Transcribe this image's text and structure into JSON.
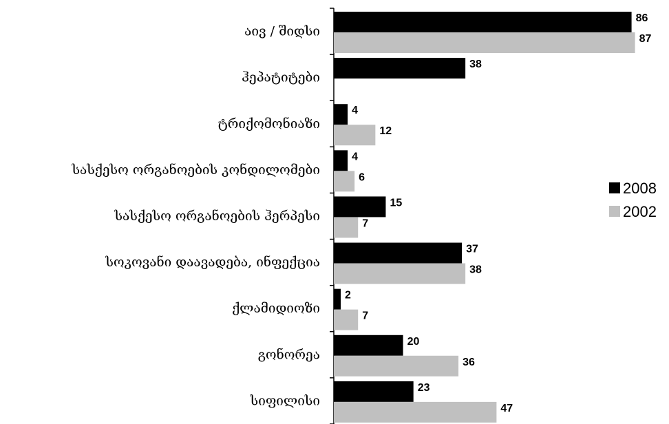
{
  "chart_data": {
    "type": "bar",
    "orientation": "horizontal",
    "categories": [
      "აივ / შიდსი",
      "ჰეპატიტები",
      "ტრიქომონიაზი",
      "სასქესო ორგანოების კონდილომები",
      "სასქესო ორგანოების ჰერპესი",
      "სოკოვანი დაავადება, ინფექცია",
      "ქლამიდიოზი",
      "გონორეა",
      "სიფილისი"
    ],
    "series": [
      {
        "name": "2008",
        "color": "#000000",
        "values": [
          86,
          38,
          4,
          4,
          15,
          37,
          2,
          20,
          23
        ]
      },
      {
        "name": "2002",
        "color": "#c0c0c0",
        "values": [
          87,
          null,
          12,
          6,
          7,
          38,
          7,
          36,
          47
        ]
      }
    ],
    "xlim": [
      0,
      90
    ],
    "grid": false,
    "legend_position": "right"
  }
}
